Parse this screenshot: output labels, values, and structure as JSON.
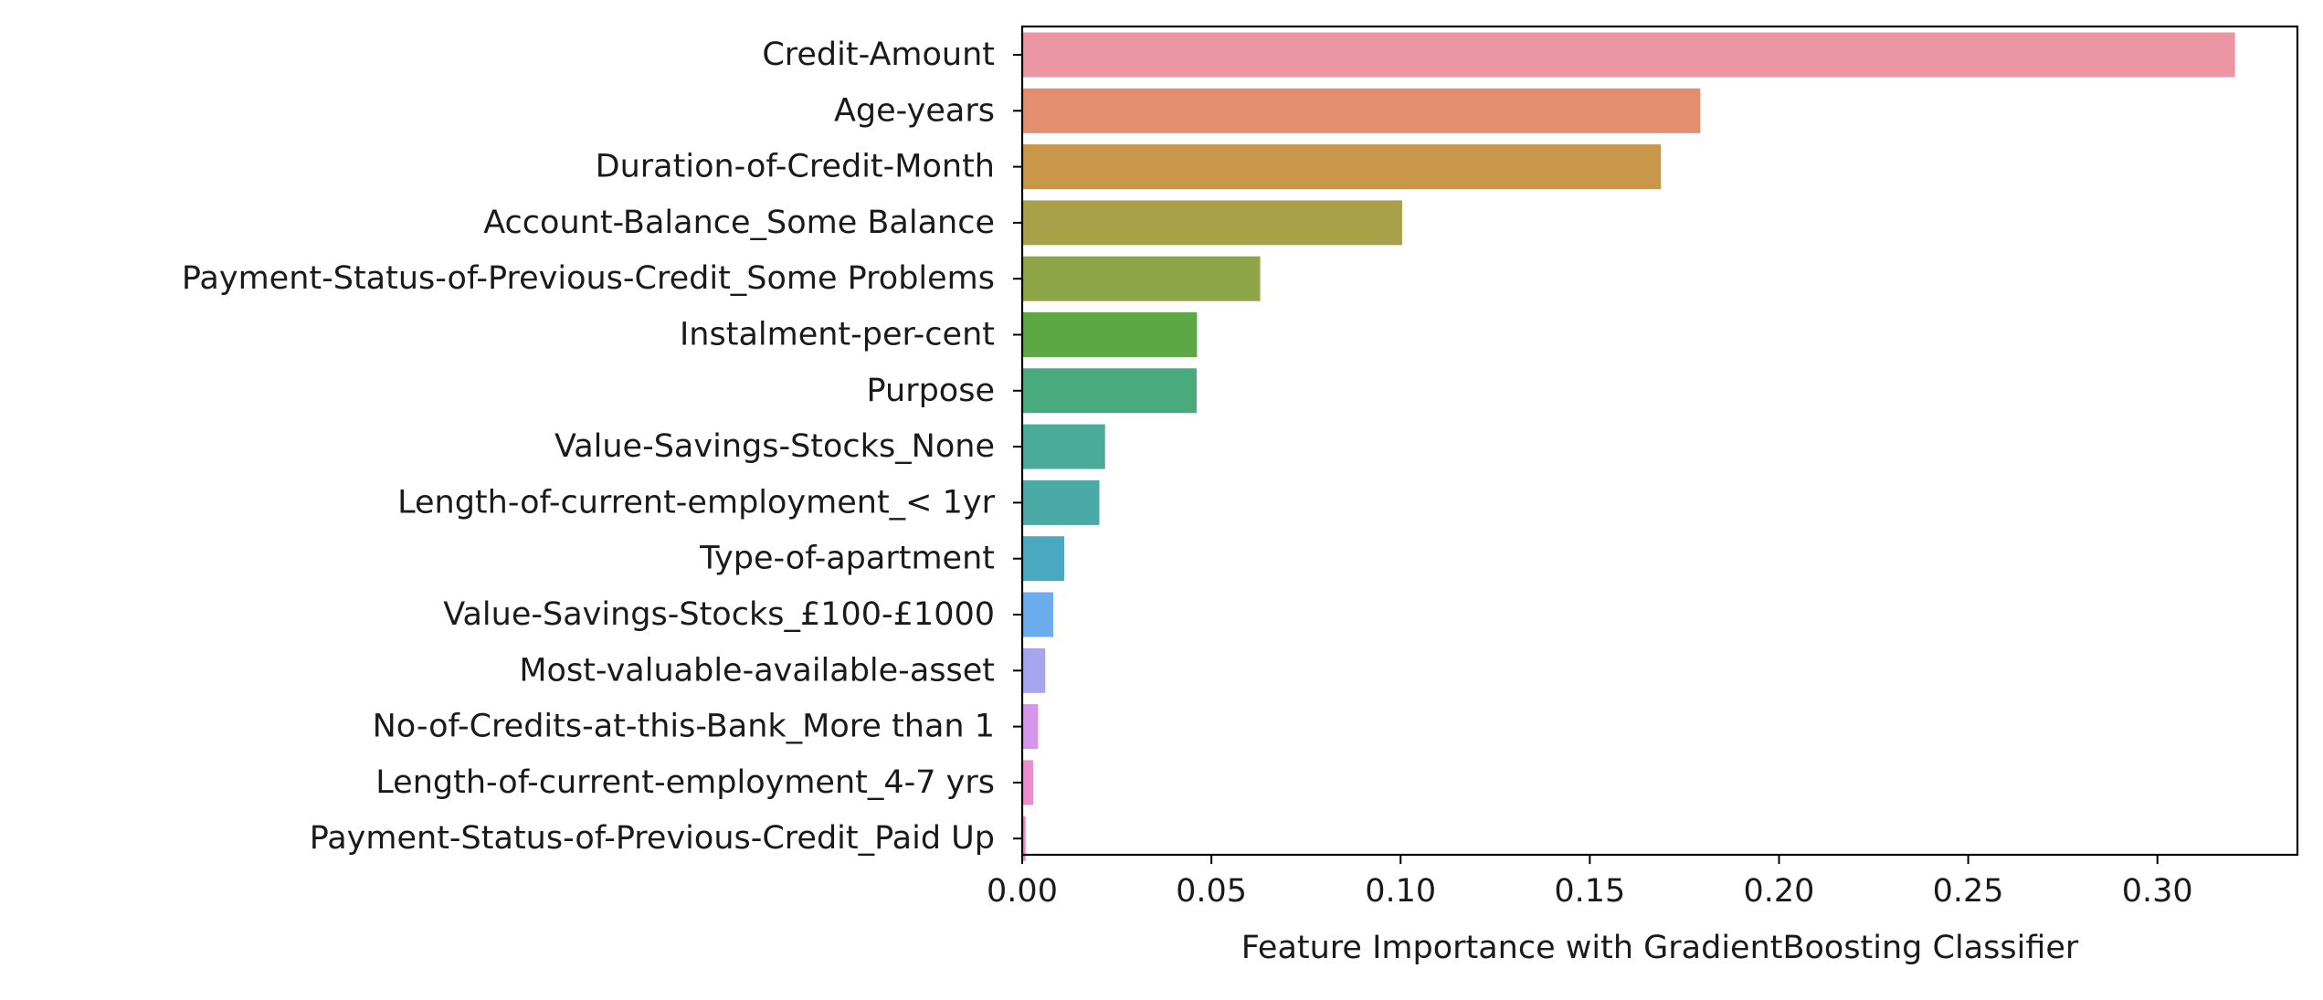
{
  "chart_data": {
    "type": "bar",
    "orientation": "horizontal",
    "title": "",
    "xlabel": "Feature Importance with GradientBoosting Classifier",
    "ylabel": "",
    "xlim": [
      0,
      0.337
    ],
    "xticks": [
      0.0,
      0.05,
      0.1,
      0.15,
      0.2,
      0.25,
      0.3
    ],
    "xtick_labels": [
      "0.00",
      "0.05",
      "0.10",
      "0.15",
      "0.20",
      "0.25",
      "0.30"
    ],
    "grid": false,
    "categories": [
      "Credit-Amount",
      "Age-years",
      "Duration-of-Credit-Month",
      "Account-Balance_Some Balance",
      "Payment-Status-of-Previous-Credit_Some Problems",
      "Instalment-per-cent",
      "Purpose",
      "Value-Savings-Stocks_None",
      "Length-of-current-employment_< 1yr",
      "Type-of-apartment",
      "Value-Savings-Stocks_£100-£1000",
      "Most-valuable-available-asset",
      "No-of-Credits-at-this-Bank_More than 1",
      "Length-of-current-employment_4-7 yrs",
      "Payment-Status-of-Previous-Credit_Paid Up"
    ],
    "values": [
      0.3205,
      0.1792,
      0.1688,
      0.1004,
      0.0629,
      0.0462,
      0.0461,
      0.0219,
      0.0204,
      0.0111,
      0.0082,
      0.0061,
      0.0042,
      0.0029,
      0.0009
    ],
    "colors": [
      "#ec96a3",
      "#e38f6f",
      "#c89749",
      "#a9a14a",
      "#8fa547",
      "#5ca944",
      "#48aa7d",
      "#4aab99",
      "#4baaa6",
      "#4ba8c1",
      "#6bacec",
      "#a6a6ef",
      "#d595ec",
      "#eb8ed1",
      "#ee8cb7"
    ]
  }
}
